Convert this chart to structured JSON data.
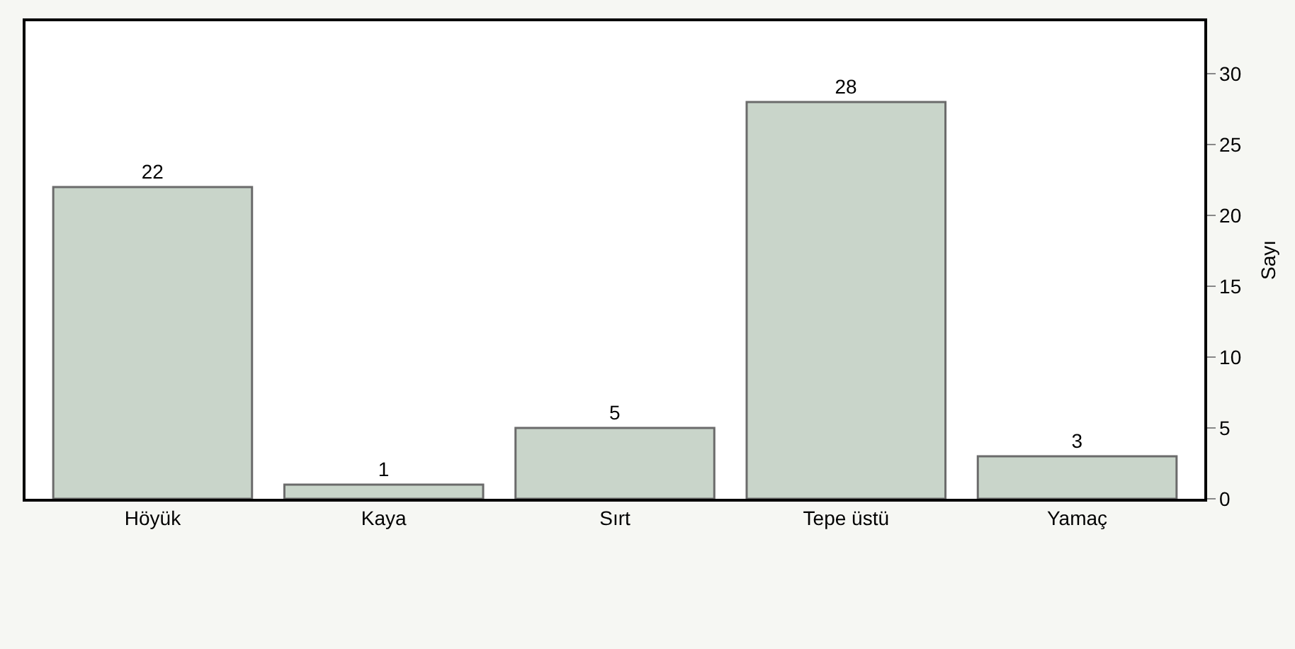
{
  "chart_data": {
    "type": "bar",
    "ylabel": "Sayı",
    "categories": [
      "Höyük",
      "Kaya",
      "Sırt",
      "Tepe üstü",
      "Yamaç"
    ],
    "values": [
      22,
      1,
      5,
      28,
      3
    ],
    "color": "#c9d5ca",
    "ylim": [
      0,
      33.7
    ],
    "yticks": [
      0,
      5,
      10,
      15,
      20,
      25,
      30
    ],
    "data_labels": true
  }
}
